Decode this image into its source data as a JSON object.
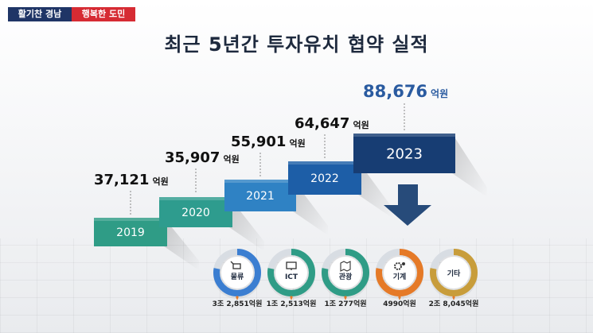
{
  "header": {
    "tag_left": "활기찬 경남",
    "tag_right": "행복한 도민",
    "title": "최근 5년간 투자유치 협약 실적"
  },
  "chart_data": {
    "type": "bar",
    "title": "최근 5년간 투자유치 협약 실적",
    "unit": "억원",
    "categories": [
      "2019",
      "2020",
      "2021",
      "2022",
      "2023"
    ],
    "values": [
      37121,
      35907,
      55901,
      64647,
      88676
    ],
    "value_labels": [
      "37,121",
      "35,907",
      "55,901",
      "64,647",
      "88,676"
    ],
    "colors": [
      "#2f9c86",
      "#2e9c8e",
      "#2f82c4",
      "#1d5ea7",
      "#173d73"
    ],
    "highlight_color": "#2a5ba0",
    "breakdown_2023": [
      {
        "sector": "물류",
        "value_label": "3조 2,851억원",
        "color": "#3b7ed1",
        "icon": "cart-icon"
      },
      {
        "sector": "ICT",
        "value_label": "1조 2,513억원",
        "color": "#2f9c86",
        "icon": "monitor-icon"
      },
      {
        "sector": "관광",
        "value_label": "1조 277억원",
        "color": "#2f9c86",
        "icon": "map-icon"
      },
      {
        "sector": "기계",
        "value_label": "4990억원",
        "color": "#e57a28",
        "icon": "gear-icon"
      },
      {
        "sector": "기타",
        "value_label": "2조 8,045억원",
        "color": "#c89d3b",
        "icon": ""
      }
    ]
  }
}
